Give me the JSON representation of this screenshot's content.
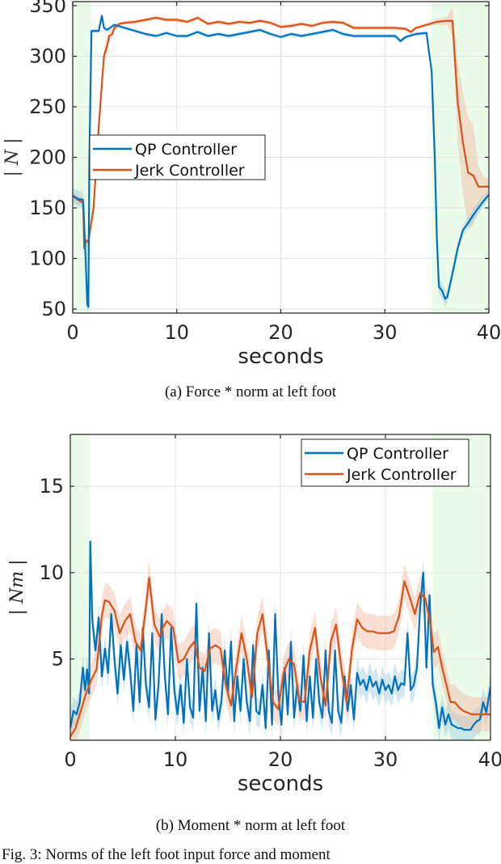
{
  "figure": {
    "subfigures": [
      {
        "caption": "(a) Force * norm at left foot"
      },
      {
        "caption": "(b) Moment * norm at left foot"
      }
    ],
    "figure_caption_partial": "Fig. 3: Norms of the left foot input force and moment"
  },
  "colors": {
    "qp": "#0072BD",
    "jerk": "#D95319",
    "qp_band": "#9ecae1",
    "jerk_band": "#f4b8a0",
    "contact_shade": "#eafbe9",
    "grid": "#e3e3e3",
    "axis": "#262626"
  },
  "chart_data": [
    {
      "type": "line",
      "title": "(a) Force * norm at left foot",
      "xlabel": "seconds",
      "ylabel": "| N |",
      "xlim": [
        0,
        40
      ],
      "ylim": [
        46,
        354
      ],
      "xticks": [
        0,
        10,
        20,
        30,
        40
      ],
      "yticks": [
        50,
        100,
        150,
        200,
        250,
        300,
        350
      ],
      "grid": true,
      "legend": {
        "position": "center-left",
        "entries": [
          "QP Controller",
          "Jerk Controller"
        ]
      },
      "shaded_regions": [
        [
          0,
          1.8
        ],
        [
          34.5,
          40
        ]
      ],
      "series": [
        {
          "name": "QP Controller",
          "x": [
            0,
            0.5,
            1.0,
            1.2,
            1.4,
            1.5,
            1.6,
            1.8,
            2.0,
            2.5,
            2.8,
            3.0,
            3.3,
            4.0,
            5,
            6,
            7,
            8,
            9,
            10,
            11,
            12,
            13,
            14,
            15,
            16,
            17,
            18,
            19,
            20,
            21,
            22,
            23,
            24,
            25,
            26,
            27,
            28,
            29,
            30,
            31,
            31.5,
            32,
            33,
            34.0,
            34.5,
            34.8,
            35.0,
            35.2,
            35.5,
            35.8,
            36.0,
            36.5,
            37,
            37.5,
            38,
            38.5,
            39,
            39.5,
            40
          ],
          "values": [
            162,
            159,
            158,
            110,
            55,
            52,
            200,
            325,
            325,
            325,
            340,
            328,
            326,
            331,
            328,
            325,
            322,
            320,
            323,
            320,
            320,
            324,
            320,
            322,
            320,
            322,
            324,
            326,
            322,
            319,
            322,
            320,
            322,
            324,
            326,
            322,
            320,
            320,
            320,
            320,
            320,
            315,
            319,
            322,
            323,
            285,
            200,
            120,
            72,
            68,
            60,
            62,
            85,
            110,
            128,
            135,
            143,
            150,
            157,
            163
          ],
          "band": [
            8,
            8,
            8,
            6,
            6,
            6,
            4,
            2,
            2,
            2,
            2,
            2,
            2,
            2,
            2,
            2,
            2,
            2,
            2,
            2,
            2,
            2,
            2,
            2,
            2,
            2,
            2,
            2,
            2,
            2,
            2,
            2,
            2,
            2,
            2,
            2,
            2,
            2,
            2,
            2,
            2,
            2,
            2,
            2,
            2,
            3,
            4,
            6,
            8,
            8,
            8,
            6,
            6,
            5,
            5,
            6,
            6,
            6,
            5,
            4
          ]
        },
        {
          "name": "Jerk Controller",
          "x": [
            0,
            0.5,
            1.0,
            1.1,
            1.3,
            1.5,
            1.7,
            2.0,
            2.5,
            3.0,
            3.3,
            3.5,
            3.8,
            4.0,
            4.5,
            5,
            6,
            7,
            8,
            9,
            10,
            11,
            12,
            13,
            14,
            15,
            16,
            17,
            18,
            19,
            20,
            21,
            22,
            23,
            24,
            25,
            26,
            27,
            28,
            29,
            30,
            31,
            32,
            32.5,
            33,
            34,
            35,
            36,
            36.5,
            37,
            37.5,
            38,
            38.5,
            39,
            39.5,
            40
          ],
          "values": [
            162,
            158,
            155,
            110,
            118,
            116,
            130,
            150,
            230,
            300,
            310,
            320,
            322,
            328,
            332,
            333,
            334,
            336,
            338,
            336,
            336,
            334,
            338,
            332,
            334,
            332,
            334,
            333,
            335,
            333,
            329,
            330,
            332,
            330,
            333,
            334,
            333,
            328,
            328,
            328,
            328,
            328,
            327,
            324,
            328,
            331,
            334,
            335,
            335,
            255,
            215,
            185,
            182,
            171,
            171,
            171
          ],
          "band": [
            4,
            4,
            4,
            6,
            6,
            6,
            8,
            10,
            10,
            8,
            8,
            6,
            4,
            3,
            2,
            2,
            2,
            2,
            2,
            2,
            2,
            2,
            2,
            2,
            2,
            2,
            2,
            2,
            2,
            2,
            2,
            2,
            2,
            2,
            2,
            2,
            2,
            2,
            2,
            2,
            2,
            2,
            2,
            2,
            2,
            2,
            3,
            4,
            15,
            40,
            50,
            55,
            50,
            20,
            10,
            8
          ]
        }
      ]
    },
    {
      "type": "line",
      "title": "(b) Moment * norm at left foot",
      "xlabel": "seconds",
      "ylabel": "| Nm |",
      "xlim": [
        0,
        40
      ],
      "ylim": [
        0.3,
        18
      ],
      "xticks": [
        0,
        10,
        20,
        30,
        40
      ],
      "yticks": [
        5,
        10,
        15
      ],
      "grid": true,
      "legend": {
        "position": "upper-right",
        "entries": [
          "QP Controller",
          "Jerk Controller"
        ]
      },
      "shaded_regions": [
        [
          0,
          1.8
        ],
        [
          34.5,
          40
        ]
      ],
      "series": [
        {
          "name": "QP Controller",
          "x": [
            0,
            0.3,
            0.6,
            0.9,
            1.2,
            1.4,
            1.6,
            1.8,
            1.9,
            2.1,
            2.4,
            2.7,
            3.0,
            3.3,
            3.6,
            3.9,
            4.2,
            4.5,
            4.8,
            5.1,
            5.4,
            5.7,
            6.0,
            6.3,
            6.6,
            6.9,
            7.2,
            7.5,
            7.8,
            8.1,
            8.4,
            8.7,
            9.0,
            9.3,
            9.6,
            9.9,
            10.2,
            10.5,
            10.8,
            11.1,
            11.4,
            11.7,
            12.0,
            12.3,
            12.6,
            12.9,
            13.2,
            13.5,
            13.8,
            14.1,
            14.4,
            14.7,
            15.0,
            15.3,
            15.6,
            15.9,
            16.2,
            16.5,
            16.8,
            17.1,
            17.4,
            17.7,
            18.0,
            18.3,
            18.6,
            18.9,
            19.2,
            19.5,
            19.8,
            20.1,
            20.4,
            20.7,
            21.0,
            21.3,
            21.6,
            21.9,
            22.2,
            22.5,
            22.8,
            23.1,
            23.4,
            23.7,
            24.0,
            24.3,
            24.6,
            24.9,
            25.2,
            25.5,
            25.8,
            26.1,
            26.4,
            26.7,
            27.0,
            27.3,
            27.6,
            27.9,
            28.2,
            28.5,
            28.8,
            29.1,
            29.4,
            29.7,
            30.0,
            30.3,
            30.6,
            30.9,
            31.2,
            31.5,
            31.8,
            32.1,
            32.4,
            32.7,
            33.0,
            33.3,
            33.6,
            33.9,
            34.2,
            34.5,
            34.8,
            35.1,
            35.4,
            35.7,
            36.0,
            36.3,
            36.6,
            36.9,
            37.2,
            37.5,
            37.8,
            38.1,
            38.4,
            38.7,
            39.0,
            39.3,
            39.6,
            40.0
          ],
          "values": [
            1.0,
            2.0,
            1.8,
            2.5,
            4.5,
            3.2,
            4.4,
            3.0,
            11.8,
            7.2,
            5.5,
            7.4,
            4.0,
            5.6,
            4.2,
            7.6,
            5.0,
            3.0,
            5.8,
            3.8,
            6.0,
            4.3,
            2.0,
            5.8,
            2.5,
            6.8,
            3.5,
            2.2,
            6.5,
            1.5,
            3.5,
            7.6,
            4.0,
            1.8,
            6.8,
            3.2,
            1.8,
            3.5,
            1.3,
            5.0,
            2.2,
            1.6,
            8.2,
            2.0,
            4.5,
            1.4,
            6.5,
            2.0,
            3.2,
            1.5,
            2.6,
            5.5,
            3.0,
            6.0,
            1.4,
            4.0,
            2.0,
            5.0,
            2.5,
            1.4,
            5.8,
            2.0,
            1.8,
            3.5,
            1.0,
            5.5,
            1.2,
            7.6,
            3.0,
            1.2,
            4.5,
            1.8,
            6.0,
            1.6,
            3.5,
            2.0,
            5.2,
            1.4,
            4.0,
            1.6,
            5.0,
            2.5,
            1.6,
            5.5,
            2.0,
            1.3,
            5.5,
            2.0,
            1.3,
            4.0,
            2.0,
            3.5,
            1.5,
            4.2,
            3.5,
            3.8,
            3.2,
            4.0,
            3.4,
            3.7,
            3.0,
            3.8,
            3.2,
            3.5,
            3.0,
            4.0,
            3.2,
            3.6,
            3.5,
            6.5,
            3.2,
            3.5,
            4.5,
            8.0,
            10.0,
            4.5,
            8.7,
            3.5,
            2.5,
            1.0,
            2.2,
            1.2,
            1.8,
            1.2,
            1.1,
            1.0,
            1.0,
            0.9,
            0.9,
            0.9,
            1.2,
            1.4,
            1.5,
            2.5,
            1.9,
            3.4
          ],
          "band": 0.8
        },
        {
          "name": "Jerk Controller",
          "x": [
            0,
            0.5,
            1.0,
            1.5,
            2.0,
            2.5,
            3.0,
            3.3,
            3.7,
            4.2,
            4.7,
            5.2,
            5.7,
            6.2,
            6.7,
            7.2,
            7.5,
            8.0,
            8.5,
            8.8,
            9.2,
            9.8,
            10.3,
            10.8,
            11.3,
            11.8,
            12.3,
            12.8,
            13.3,
            13.8,
            14.3,
            14.8,
            15.3,
            15.8,
            16.3,
            16.8,
            17.3,
            17.8,
            18.3,
            18.8,
            19.3,
            19.8,
            20.3,
            20.8,
            21.3,
            21.8,
            22.3,
            22.8,
            23.3,
            23.8,
            24.3,
            24.8,
            25.3,
            25.8,
            26.3,
            26.8,
            27.3,
            27.8,
            28.3,
            28.8,
            29.3,
            29.8,
            30.3,
            30.8,
            31.3,
            31.8,
            32.3,
            32.8,
            33.3,
            33.8,
            34.3,
            34.6,
            35.0,
            35.4,
            35.8,
            36.2,
            36.6,
            37.0,
            37.4,
            37.8,
            38.2,
            38.6,
            39.0,
            39.5,
            40.0
          ],
          "values": [
            0.5,
            1.0,
            2.0,
            3.0,
            3.8,
            4.4,
            7.5,
            8.4,
            8.3,
            7.8,
            6.5,
            7.2,
            7.6,
            6.0,
            5.5,
            8.0,
            9.7,
            7.0,
            6.3,
            6.8,
            7.2,
            6.8,
            4.8,
            5.0,
            5.6,
            6.0,
            4.5,
            4.3,
            5.6,
            5.8,
            5.6,
            3.5,
            2.3,
            4.5,
            6.5,
            5.0,
            2.8,
            6.5,
            7.6,
            5.0,
            2.5,
            2.1,
            4.2,
            5.0,
            4.7,
            2.6,
            2.5,
            5.5,
            6.8,
            4.0,
            2.3,
            6.0,
            7.0,
            4.5,
            2.5,
            5.5,
            7.3,
            6.8,
            6.6,
            6.6,
            6.5,
            6.5,
            6.5,
            6.6,
            7.5,
            9.5,
            8.6,
            7.6,
            8.8,
            8.5,
            7.0,
            5.4,
            5.7,
            4.5,
            3.5,
            2.5,
            2.5,
            2.2,
            2.0,
            1.9,
            1.8,
            1.8,
            1.8,
            1.8,
            1.8
          ],
          "band": 1.0
        }
      ]
    }
  ]
}
